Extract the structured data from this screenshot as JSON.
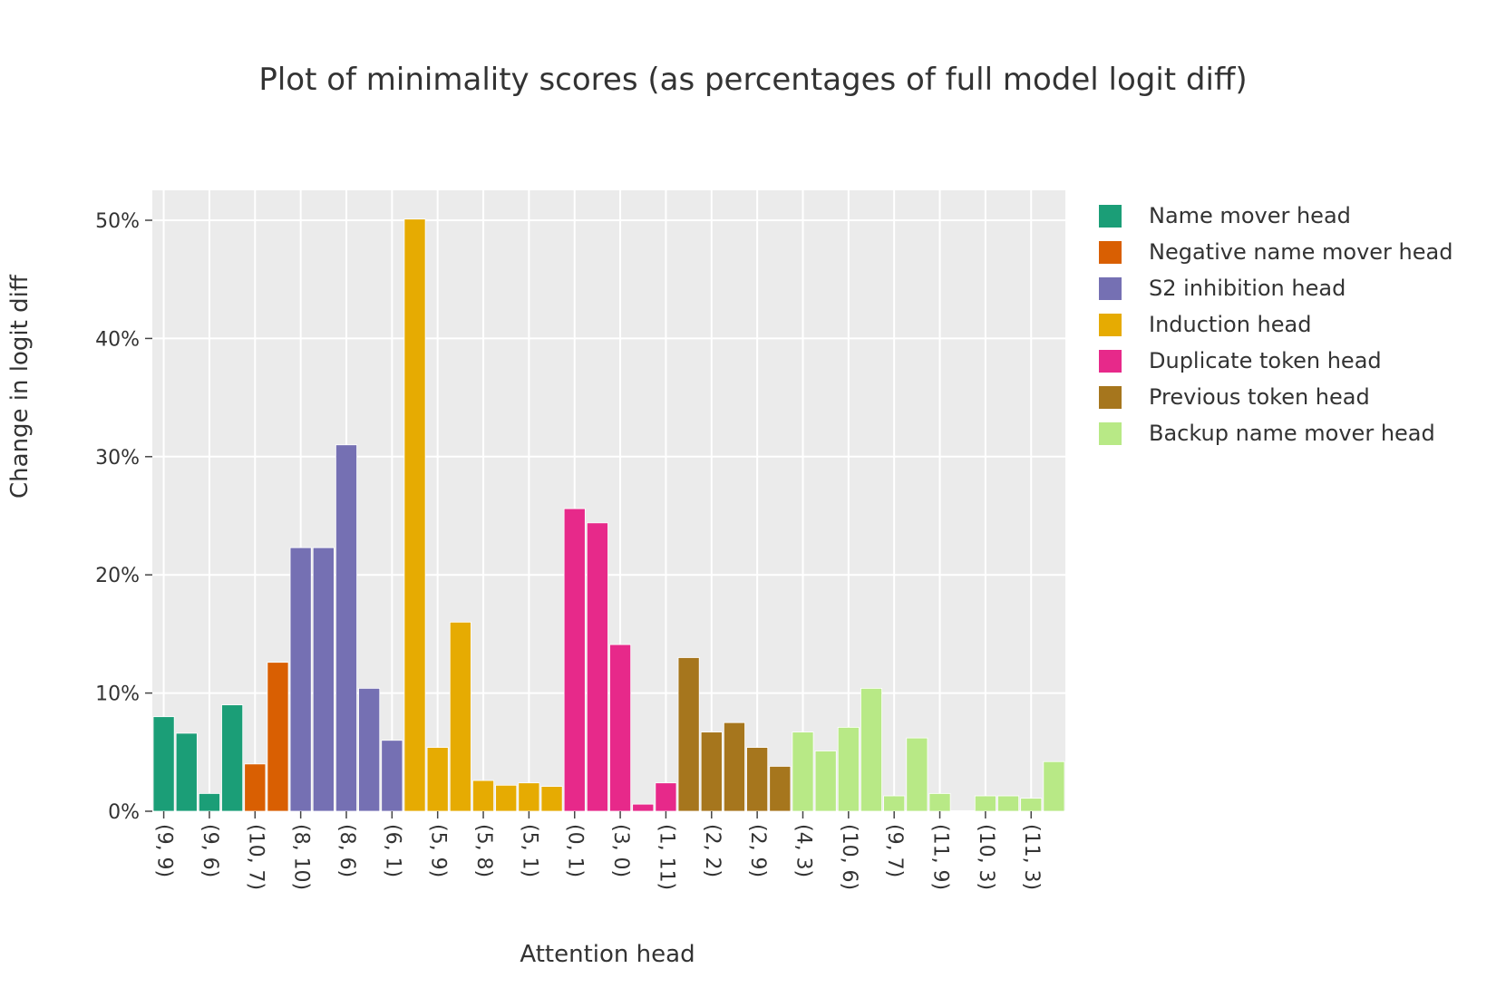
{
  "chart_data": {
    "type": "bar",
    "title": "Plot of minimality scores (as percentages of full model logit diff)",
    "xlabel": "Attention head",
    "ylabel": "Change in logit diff",
    "ylim": [
      0,
      52.8
    ],
    "y_ticks": [
      "0%",
      "10%",
      "20%",
      "30%",
      "40%",
      "50%"
    ],
    "y_tick_values": [
      0,
      10,
      20,
      30,
      40,
      50
    ],
    "grid": true,
    "legend_placement": "right",
    "tick_labels": [
      "(9, 9)",
      "(9, 6)",
      "(10, 7)",
      "(8, 10)",
      "(8, 6)",
      "(6, 1)",
      "(5, 9)",
      "(5, 8)",
      "(5, 1)",
      "(0, 1)",
      "(3, 0)",
      "(1, 11)",
      "(2, 2)",
      "(2, 9)",
      "(4, 3)",
      "(10, 6)",
      "(9, 7)",
      "(11, 9)",
      "(10, 3)",
      "(11, 3)"
    ],
    "tick_positions": [
      0,
      2,
      4,
      6,
      8,
      10,
      12,
      14,
      16,
      18,
      20,
      22,
      24,
      26,
      28,
      30,
      32,
      34,
      36,
      38
    ],
    "series": [
      {
        "name": "Name mover head",
        "color": "#1b9e77",
        "positions": [
          0,
          1,
          2,
          3
        ],
        "values": [
          8.0,
          6.6,
          1.5,
          9.0
        ]
      },
      {
        "name": "Negative name mover head",
        "color": "#d95f02",
        "positions": [
          4,
          5
        ],
        "values": [
          4.0,
          12.6
        ]
      },
      {
        "name": "S2 inhibition head",
        "color": "#7570b3",
        "positions": [
          6,
          7,
          8,
          9,
          10
        ],
        "values": [
          22.3,
          22.3,
          31.0,
          10.4,
          6.0
        ]
      },
      {
        "name": "Induction head",
        "color": "#e6ab02",
        "positions": [
          11,
          12,
          13,
          14,
          15,
          16,
          17
        ],
        "values": [
          50.1,
          5.4,
          16.0,
          2.6,
          2.2,
          2.4,
          2.1
        ]
      },
      {
        "name": "Duplicate token head",
        "color": "#e7298a",
        "positions": [
          18,
          19,
          20,
          21,
          22
        ],
        "values": [
          25.6,
          24.4,
          14.1,
          0.6,
          2.4
        ]
      },
      {
        "name": "Previous token head",
        "color": "#a6761d",
        "positions": [
          23,
          24,
          25,
          26,
          27
        ],
        "values": [
          13.0,
          6.7,
          7.5,
          5.4,
          3.8
        ]
      },
      {
        "name": "Backup name mover head",
        "color": "#b8e986",
        "positions": [
          28,
          29,
          30,
          31,
          32,
          33,
          34,
          35,
          36,
          37,
          38
        ],
        "values": [
          6.7,
          5.1,
          7.1,
          10.4,
          1.3,
          6.2,
          1.5,
          0,
          1.3,
          1.3,
          1.1
        ]
      }
    ],
    "extra_bar": {
      "position": 39,
      "value": 4.2,
      "color": "#b8e986"
    }
  }
}
